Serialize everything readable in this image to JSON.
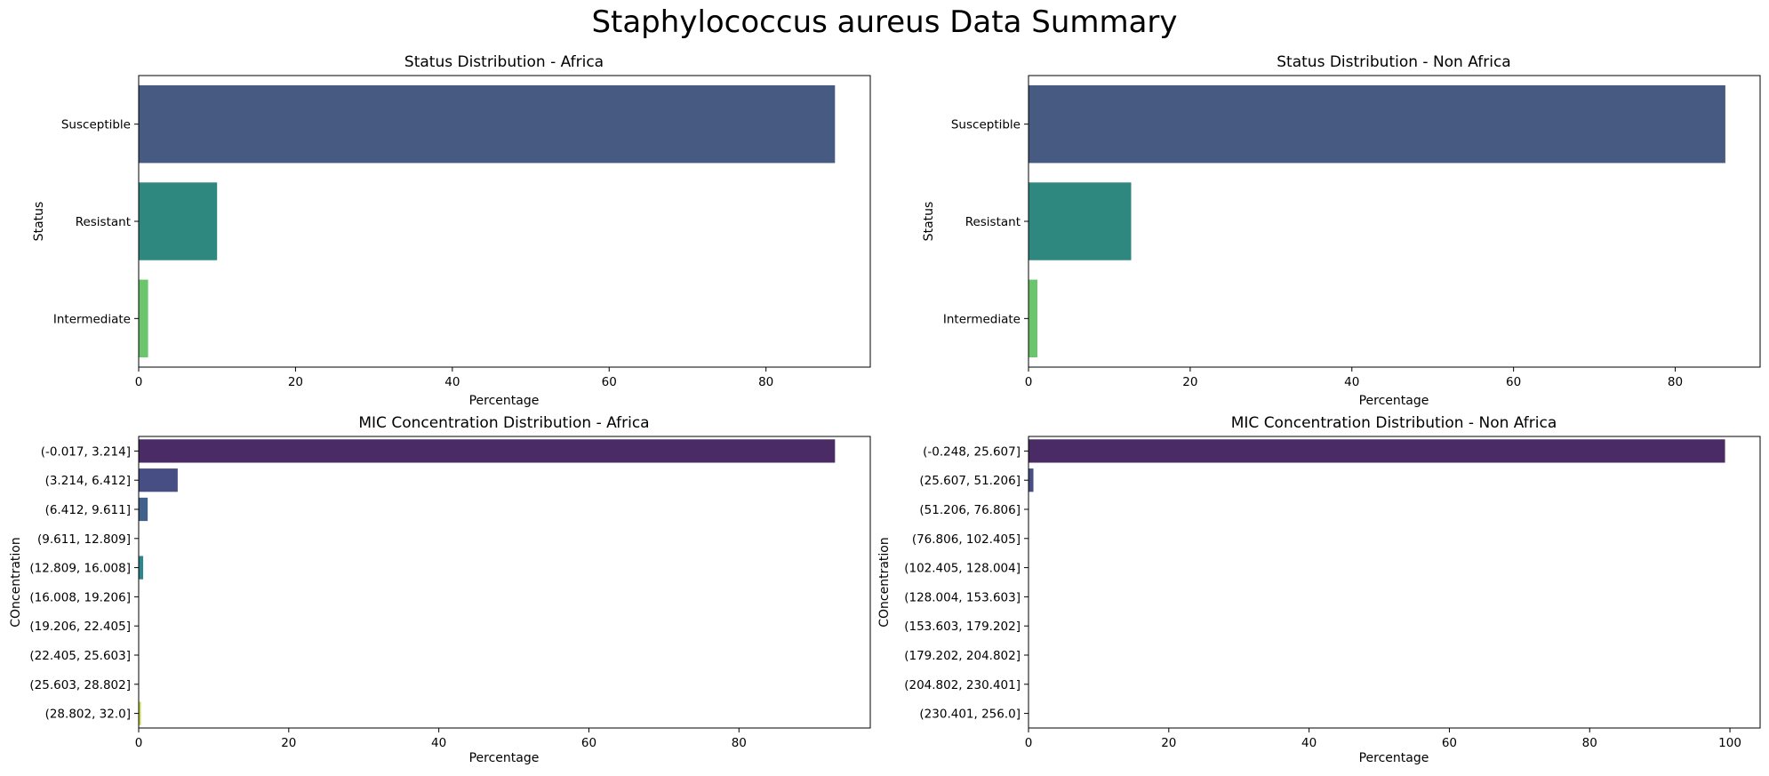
{
  "figure": {
    "title": "Staphylococcus aureus Data Summary"
  },
  "chart_data": [
    {
      "type": "bar",
      "orientation": "horizontal",
      "title": "Status Distribution - Africa",
      "xlabel": "Percentage",
      "ylabel": "Status",
      "categories": [
        "Susceptible",
        "Resistant",
        "Intermediate"
      ],
      "values": [
        88.8,
        10.0,
        1.2
      ],
      "colors": [
        "#465a82",
        "#2e8880",
        "#6ac56c"
      ],
      "xlim": [
        0,
        93.3
      ],
      "xticks": [
        0,
        20,
        40,
        60,
        80
      ],
      "grid": false
    },
    {
      "type": "bar",
      "orientation": "horizontal",
      "title": "Status Distribution - Non Africa",
      "xlabel": "Percentage",
      "ylabel": "Status",
      "categories": [
        "Susceptible",
        "Resistant",
        "Intermediate"
      ],
      "values": [
        86.2,
        12.7,
        1.1
      ],
      "colors": [
        "#465a82",
        "#2e8880",
        "#6ac56c"
      ],
      "xlim": [
        0,
        90.5
      ],
      "xticks": [
        0,
        20,
        40,
        60,
        80
      ],
      "grid": false
    },
    {
      "type": "bar",
      "orientation": "horizontal",
      "title": "MIC Concentration Distribution - Africa",
      "xlabel": "Percentage",
      "ylabel": "COncentration",
      "categories": [
        "(-0.017, 3.214]",
        "(3.214, 6.412]",
        "(6.412, 9.611]",
        "(9.611, 12.809]",
        "(12.809, 16.008]",
        "(16.008, 19.206]",
        "(19.206, 22.405]",
        "(22.405, 25.603]",
        "(25.603, 28.802]",
        "(28.802, 32.0]"
      ],
      "values": [
        92.8,
        5.2,
        1.2,
        0,
        0.6,
        0,
        0,
        0,
        0,
        0.3
      ],
      "colors": [
        "#4a2b66",
        "#474e84",
        "#41608a",
        "#3a728c",
        "#2e858d",
        "#27968b",
        "#34a886",
        "#5cb87a",
        "#90c863",
        "#c7d84c"
      ],
      "xlim": [
        0,
        97.5
      ],
      "xticks": [
        0,
        20,
        40,
        60,
        80
      ],
      "grid": false
    },
    {
      "type": "bar",
      "orientation": "horizontal",
      "title": "MIC Concentration Distribution - Non Africa",
      "xlabel": "Percentage",
      "ylabel": "COncentration",
      "categories": [
        "(-0.248, 25.607]",
        "(25.607, 51.206]",
        "(51.206, 76.806]",
        "(76.806, 102.405]",
        "(102.405, 128.004]",
        "(128.004, 153.603]",
        "(153.603, 179.202]",
        "(179.202, 204.802]",
        "(204.802, 230.401]",
        "(230.401, 256.0]"
      ],
      "values": [
        99.3,
        0.7,
        0,
        0,
        0,
        0,
        0,
        0,
        0,
        0
      ],
      "colors": [
        "#4a2b66",
        "#474e84",
        "#41608a",
        "#3a728c",
        "#2e858d",
        "#27968b",
        "#34a886",
        "#5cb87a",
        "#90c863",
        "#c7d84c"
      ],
      "xlim": [
        0,
        104.3
      ],
      "xticks": [
        0,
        20,
        40,
        60,
        80,
        100
      ],
      "grid": false
    }
  ]
}
